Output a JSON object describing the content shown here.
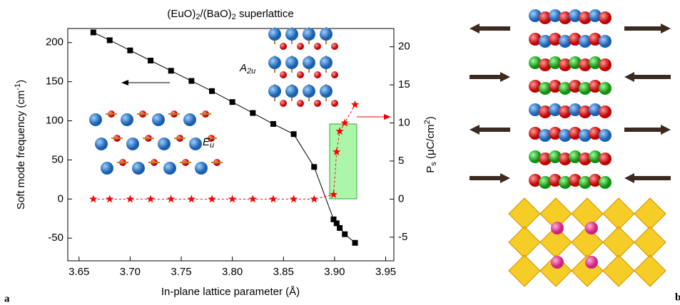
{
  "chart_data": {
    "type": "line",
    "title": [
      "(EuO)",
      "2",
      "/(BaO)",
      "2",
      " superlattice"
    ],
    "xlabel": "In-plane lattice parameter (Å)",
    "ylabel": [
      "Soft mode frequency (cm",
      "-1",
      ")"
    ],
    "y2label": [
      "P",
      "s",
      " (μC/cm",
      "2",
      ")"
    ],
    "annotations": {
      "eu": [
        "E",
        "u"
      ],
      "a2u": [
        "A",
        "2u"
      ],
      "panel_a": "a",
      "panel_b": "b"
    },
    "x": [
      3.664,
      3.68,
      3.7,
      3.72,
      3.74,
      3.76,
      3.78,
      3.8,
      3.82,
      3.84,
      3.86,
      3.88,
      3.899,
      3.902,
      3.905,
      3.91,
      3.92
    ],
    "series": [
      {
        "color": "#000000",
        "marker": "square",
        "values": [
          213,
          203,
          190,
          177,
          164,
          151,
          138,
          124,
          110,
          96,
          83,
          41,
          -26,
          -31,
          -37,
          -45,
          -56
        ]
      },
      {
        "color": "#ff0000",
        "marker": "star",
        "axis": "y2",
        "dashed": true,
        "values": [
          0,
          0,
          0,
          0,
          0,
          0,
          0,
          0,
          0,
          0,
          0,
          0,
          0.6,
          6.2,
          8.9,
          10,
          12.4
        ]
      }
    ],
    "xlim": [
      3.639,
      3.958
    ],
    "xticks": [
      3.65,
      {
        "value": 3.7,
        "label": "3.70"
      },
      3.75,
      {
        "value": 3.8,
        "label": "3.80"
      },
      3.85,
      {
        "value": 3.9,
        "label": "3.90"
      },
      3.95
    ],
    "ylim": [
      -79,
      218
    ],
    "yticks": [
      -50,
      0,
      50,
      100,
      150,
      200
    ],
    "y2lim": [
      -8.1,
      22.4
    ],
    "y2ticks": [
      -5,
      0,
      5,
      10,
      15,
      20
    ]
  }
}
